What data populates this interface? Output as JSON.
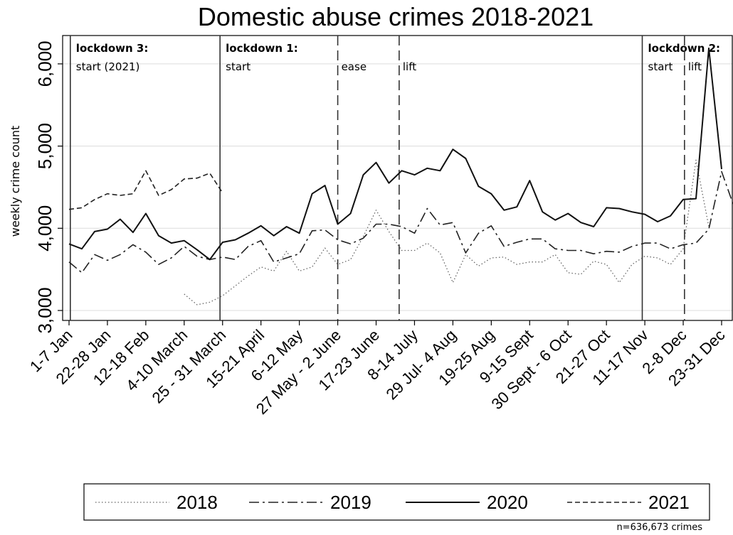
{
  "chart_data": {
    "type": "line",
    "title": "Domestic abuse crimes 2018-2021",
    "xlabel": "",
    "ylabel": "weekly crime count",
    "ylim": [
      2880,
      6350
    ],
    "yticks": [
      3000,
      4000,
      5000,
      6000
    ],
    "ytick_labels": [
      "3,000",
      "4,000",
      "5,000",
      "6,000"
    ],
    "n_weeks": 53,
    "x_tick_labels": [
      {
        "week": 1,
        "label": "1-7 Jan"
      },
      {
        "week": 4,
        "label": "22-28 Jan"
      },
      {
        "week": 7,
        "label": "12-18 Feb"
      },
      {
        "week": 10,
        "label": "4-10 March"
      },
      {
        "week": 13,
        "label": "25 - 31 March"
      },
      {
        "week": 16,
        "label": "15-21 April"
      },
      {
        "week": 19,
        "label": "6-12 May"
      },
      {
        "week": 22,
        "label": "27 May - 2 June"
      },
      {
        "week": 25,
        "label": "17-23 June"
      },
      {
        "week": 28,
        "label": "8-14 July"
      },
      {
        "week": 31,
        "label": "29 Jul- 4 Aug"
      },
      {
        "week": 34,
        "label": "19-25 Aug"
      },
      {
        "week": 37,
        "label": "9-15 Sept"
      },
      {
        "week": 40,
        "label": "30 Sept - 6 Oct"
      },
      {
        "week": 43,
        "label": "21-27 Oct"
      },
      {
        "week": 46,
        "label": "11-17 Nov"
      },
      {
        "week": 49,
        "label": "2-8 Dec"
      },
      {
        "week": 52,
        "label": "23-31 Dec"
      }
    ],
    "series": [
      {
        "name": "2018",
        "style": "dotted",
        "start_week": 10,
        "values": [
          3200,
          3070,
          3100,
          3180,
          3300,
          3420,
          3530,
          3480,
          3720,
          3480,
          3530,
          3760,
          3560,
          3620,
          3900,
          4220,
          3960,
          3730,
          3730,
          3820,
          3700,
          3340,
          3680,
          3540,
          3640,
          3650,
          3560,
          3590,
          3590,
          3680,
          3460,
          3440,
          3600,
          3560,
          3340,
          3560,
          3660,
          3640,
          3560,
          3750,
          4830,
          4020
        ]
      },
      {
        "name": "2019",
        "style": "dash-dot",
        "start_week": 1,
        "values": [
          3590,
          3460,
          3680,
          3610,
          3680,
          3800,
          3710,
          3560,
          3640,
          3780,
          3660,
          3620,
          3650,
          3620,
          3780,
          3850,
          3590,
          3640,
          3690,
          3970,
          3980,
          3860,
          3810,
          3880,
          4050,
          4050,
          4020,
          3940,
          4240,
          4040,
          4070,
          3700,
          3940,
          4030,
          3780,
          3830,
          3870,
          3870,
          3750,
          3730,
          3730,
          3690,
          3720,
          3710,
          3780,
          3820,
          3820,
          3750,
          3800,
          3820,
          3990,
          4690,
          4250
        ]
      },
      {
        "name": "2020",
        "style": "solid",
        "start_week": 1,
        "values": [
          3810,
          3750,
          3960,
          3990,
          4110,
          3950,
          4180,
          3910,
          3820,
          3850,
          3740,
          3620,
          3830,
          3860,
          3940,
          4030,
          3910,
          4020,
          3940,
          4420,
          4520,
          4050,
          4180,
          4650,
          4800,
          4550,
          4700,
          4650,
          4730,
          4700,
          4960,
          4850,
          4510,
          4420,
          4220,
          4260,
          4580,
          4200,
          4100,
          4180,
          4070,
          4020,
          4250,
          4240,
          4200,
          4170,
          4080,
          4150,
          4350,
          4360,
          6190,
          4720
        ]
      },
      {
        "name": "2021",
        "style": "dashed",
        "start_week": 1,
        "values": [
          4230,
          4250,
          4350,
          4420,
          4400,
          4420,
          4700,
          4400,
          4470,
          4600,
          4610,
          4670,
          4430
        ]
      }
    ],
    "events": [
      {
        "week": 1.1,
        "style": "solid",
        "label_bold": "lockdown 3:",
        "label": "start (2021)"
      },
      {
        "week": 12.8,
        "style": "solid",
        "label_bold": "lockdown 1:",
        "label": "start"
      },
      {
        "week": 22.0,
        "style": "dashed",
        "label_bold": "",
        "label": "ease"
      },
      {
        "week": 26.8,
        "style": "dashed",
        "label_bold": "",
        "label": "lift"
      },
      {
        "week": 45.8,
        "style": "solid",
        "label_bold": "lockdown 2:",
        "label": "start"
      },
      {
        "week": 49.1,
        "style": "dashed",
        "label_bold": "",
        "label": "lift"
      }
    ],
    "legend": {
      "position": "bottom",
      "entries": [
        "2018",
        "2019",
        "2020",
        "2021"
      ]
    },
    "grid": "horizontal",
    "note": "n=636,673 crimes"
  }
}
